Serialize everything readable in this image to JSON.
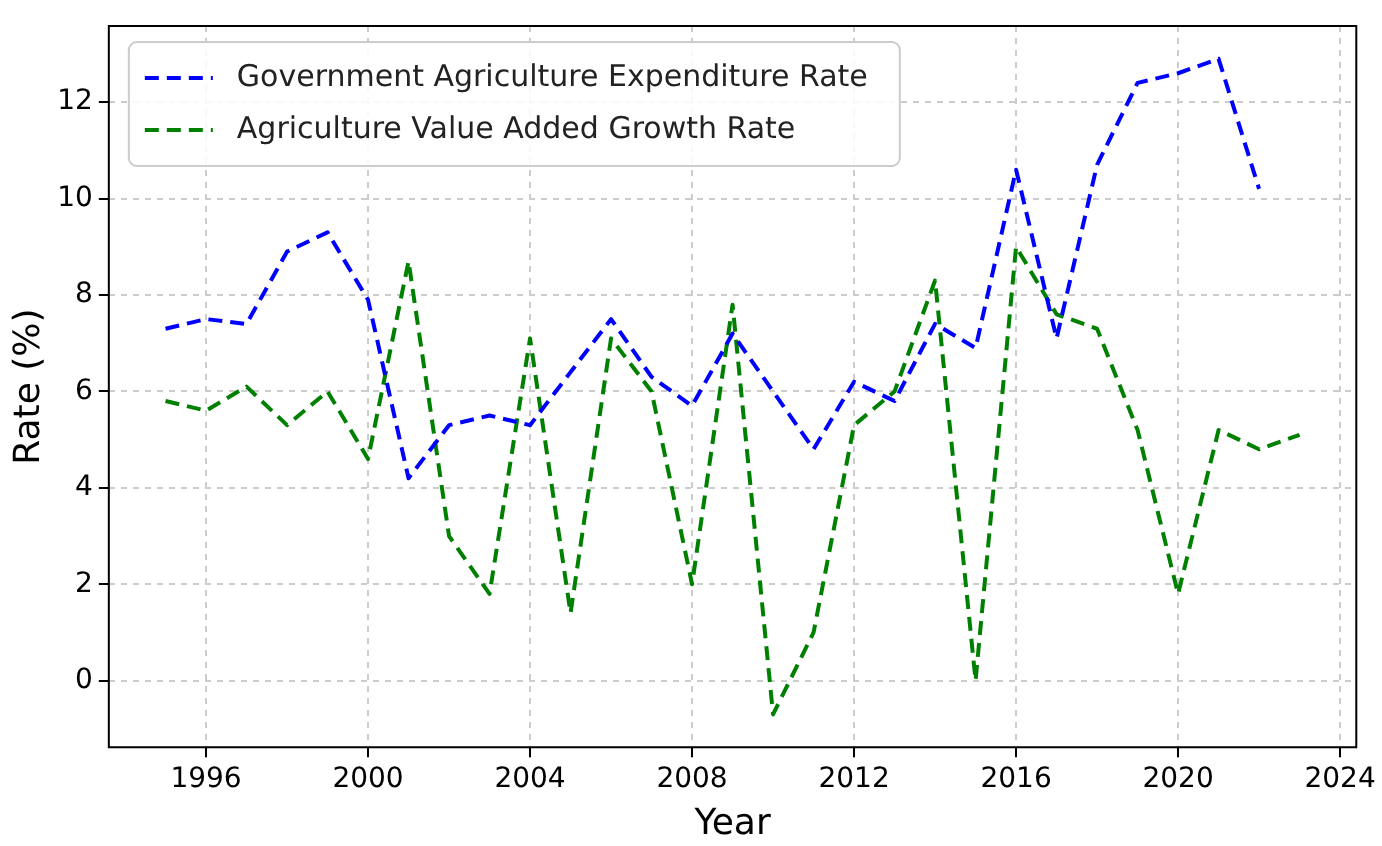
{
  "chart_data": {
    "type": "line",
    "xlabel": "Year",
    "ylabel": "Rate (%)",
    "x": [
      1995,
      1996,
      1997,
      1998,
      1999,
      2000,
      2001,
      2002,
      2003,
      2004,
      2005,
      2006,
      2007,
      2008,
      2009,
      2010,
      2011,
      2012,
      2013,
      2014,
      2015,
      2016,
      2017,
      2018,
      2019,
      2020,
      2021,
      2022,
      2023
    ],
    "series": [
      {
        "name": "Government Agriculture Expenditure Rate",
        "color": "#0000ff",
        "values": [
          7.3,
          7.5,
          7.4,
          8.9,
          9.3,
          7.9,
          4.2,
          5.3,
          5.5,
          5.3,
          6.4,
          7.5,
          6.3,
          5.7,
          7.2,
          6.0,
          4.8,
          6.2,
          5.8,
          7.4,
          6.9,
          10.6,
          7.1,
          10.7,
          12.4,
          12.6,
          12.9,
          10.2,
          null
        ]
      },
      {
        "name": "Agriculture Value Added Growth Rate",
        "color": "#008000",
        "values": [
          5.8,
          5.6,
          6.1,
          5.3,
          6.0,
          4.6,
          8.7,
          3.0,
          1.8,
          7.1,
          1.4,
          7.1,
          6.0,
          2.0,
          7.8,
          -0.7,
          1.0,
          5.3,
          6.0,
          8.3,
          0.0,
          9.0,
          7.6,
          7.3,
          5.2,
          1.8,
          5.2,
          4.8,
          5.1
        ]
      }
    ],
    "xlim": [
      1993.6,
      2024.4
    ],
    "xticks": [
      1996,
      2000,
      2004,
      2008,
      2012,
      2016,
      2020,
      2024
    ],
    "ylim": [
      -1.38,
      13.58
    ],
    "yticks": [
      0,
      2,
      4,
      6,
      8,
      10,
      12
    ],
    "grid": true,
    "legend": "top left",
    "line_style": "dashed",
    "marker": "none"
  }
}
